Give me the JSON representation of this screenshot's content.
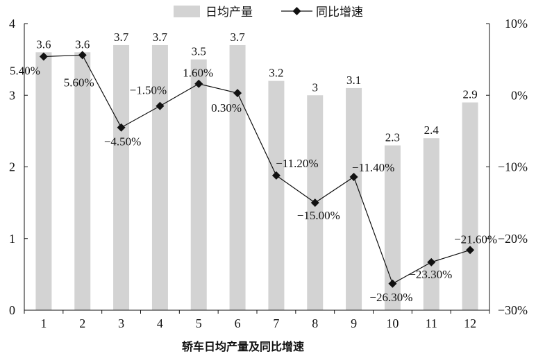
{
  "chart_data": {
    "type": "bar+line",
    "categories": [
      "1",
      "2",
      "3",
      "4",
      "5",
      "6",
      "7",
      "8",
      "9",
      "10",
      "11",
      "12"
    ],
    "series": [
      {
        "name": "日均产量",
        "type": "bar",
        "axis": "left",
        "color": "#d3d3d3",
        "values": [
          3.6,
          3.6,
          3.7,
          3.7,
          3.5,
          3.7,
          3.2,
          3,
          3.1,
          2.3,
          2.4,
          2.9
        ],
        "labels": [
          "3.6",
          "3.6",
          "3.7",
          "3.7",
          "3.5",
          "3.7",
          "3.2",
          "3",
          "3.1",
          "2.3",
          "2.4",
          "2.9"
        ]
      },
      {
        "name": "同比增速",
        "type": "line",
        "axis": "right",
        "color": "#111111",
        "marker": "diamond",
        "values": [
          5.4,
          5.6,
          -4.5,
          -1.5,
          1.6,
          0.3,
          -11.2,
          -15.0,
          -11.4,
          -26.3,
          -23.3,
          -21.6
        ],
        "labels": [
          "5.40%",
          "5.60%",
          "−4.50%",
          "−1.50%",
          "1.60%",
          "0.30%",
          "−11.20%",
          "−15.00%",
          "−11.40%",
          "−26.30%",
          "−23.30%",
          "−21.60%"
        ]
      }
    ],
    "y_left": {
      "min": 0,
      "max": 4,
      "ticks": [
        "0",
        "1",
        "2",
        "3",
        "4"
      ]
    },
    "y_right": {
      "min": -30,
      "max": 10,
      "ticks": [
        "−30%",
        "−20%",
        "−10%",
        "0%",
        "10%"
      ]
    },
    "title": "轿车日均产量及同比增速",
    "legend_position": "top",
    "grid": false
  }
}
